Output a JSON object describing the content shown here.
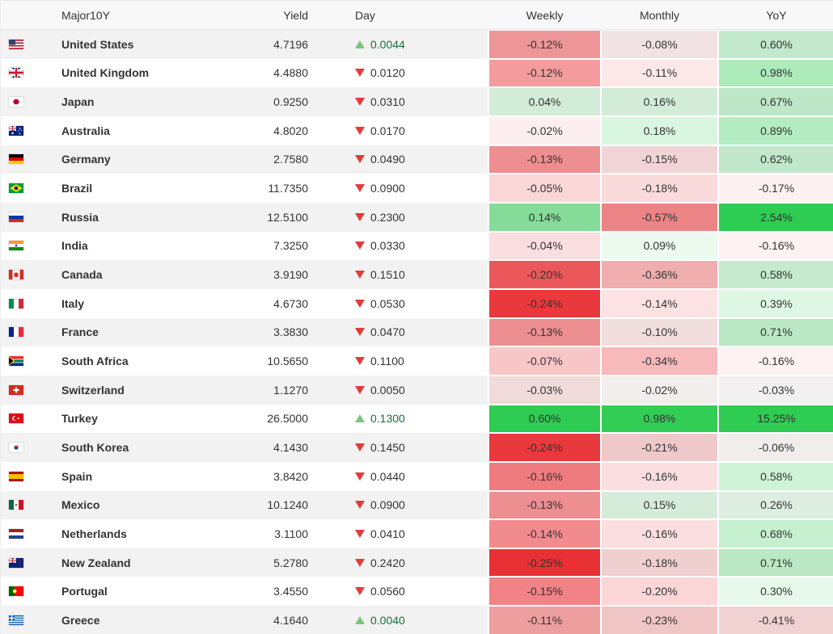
{
  "chart_data": {
    "type": "table",
    "title": "Major10Y",
    "columns": [
      "Major10Y",
      "Yield",
      "Day",
      "Weekly",
      "Monthly",
      "YoY"
    ],
    "heat_scales": {
      "weekly": 0.25,
      "monthly": 1.0,
      "yoy": 2.5
    },
    "rows": [
      {
        "country": "United States",
        "flag": "us",
        "yield": "4.7196",
        "day_change": "0.0044",
        "day_direction": "up",
        "weekly_pct": -0.12,
        "monthly_pct": -0.08,
        "yoy_pct": 0.6
      },
      {
        "country": "United Kingdom",
        "flag": "uk",
        "yield": "4.4880",
        "day_change": "0.0120",
        "day_direction": "down",
        "weekly_pct": -0.12,
        "monthly_pct": -0.11,
        "yoy_pct": 0.98
      },
      {
        "country": "Japan",
        "flag": "jp",
        "yield": "0.9250",
        "day_change": "0.0310",
        "day_direction": "down",
        "weekly_pct": 0.04,
        "monthly_pct": 0.16,
        "yoy_pct": 0.67
      },
      {
        "country": "Australia",
        "flag": "au",
        "yield": "4.8020",
        "day_change": "0.0170",
        "day_direction": "down",
        "weekly_pct": -0.02,
        "monthly_pct": 0.18,
        "yoy_pct": 0.89
      },
      {
        "country": "Germany",
        "flag": "de",
        "yield": "2.7580",
        "day_change": "0.0490",
        "day_direction": "down",
        "weekly_pct": -0.13,
        "monthly_pct": -0.15,
        "yoy_pct": 0.62
      },
      {
        "country": "Brazil",
        "flag": "br",
        "yield": "11.7350",
        "day_change": "0.0900",
        "day_direction": "down",
        "weekly_pct": -0.05,
        "monthly_pct": -0.18,
        "yoy_pct": -0.17
      },
      {
        "country": "Russia",
        "flag": "ru",
        "yield": "12.5100",
        "day_change": "0.2300",
        "day_direction": "down",
        "weekly_pct": 0.14,
        "monthly_pct": -0.57,
        "yoy_pct": 2.54
      },
      {
        "country": "India",
        "flag": "in",
        "yield": "7.3250",
        "day_change": "0.0330",
        "day_direction": "down",
        "weekly_pct": -0.04,
        "monthly_pct": 0.09,
        "yoy_pct": -0.16
      },
      {
        "country": "Canada",
        "flag": "ca",
        "yield": "3.9190",
        "day_change": "0.1510",
        "day_direction": "down",
        "weekly_pct": -0.2,
        "monthly_pct": -0.36,
        "yoy_pct": 0.58
      },
      {
        "country": "Italy",
        "flag": "it",
        "yield": "4.6730",
        "day_change": "0.0530",
        "day_direction": "down",
        "weekly_pct": -0.24,
        "monthly_pct": -0.14,
        "yoy_pct": 0.39
      },
      {
        "country": "France",
        "flag": "fr",
        "yield": "3.3830",
        "day_change": "0.0470",
        "day_direction": "down",
        "weekly_pct": -0.13,
        "monthly_pct": -0.1,
        "yoy_pct": 0.71
      },
      {
        "country": "South Africa",
        "flag": "za",
        "yield": "10.5650",
        "day_change": "0.1100",
        "day_direction": "down",
        "weekly_pct": -0.07,
        "monthly_pct": -0.34,
        "yoy_pct": -0.16
      },
      {
        "country": "Switzerland",
        "flag": "ch",
        "yield": "1.1270",
        "day_change": "0.0050",
        "day_direction": "down",
        "weekly_pct": -0.03,
        "monthly_pct": -0.02,
        "yoy_pct": -0.03
      },
      {
        "country": "Turkey",
        "flag": "tr",
        "yield": "26.5000",
        "day_change": "0.1300",
        "day_direction": "up",
        "weekly_pct": 0.6,
        "monthly_pct": 0.98,
        "yoy_pct": 15.25
      },
      {
        "country": "South Korea",
        "flag": "kr",
        "yield": "4.1430",
        "day_change": "0.1450",
        "day_direction": "down",
        "weekly_pct": -0.24,
        "monthly_pct": -0.21,
        "yoy_pct": -0.06
      },
      {
        "country": "Spain",
        "flag": "es",
        "yield": "3.8420",
        "day_change": "0.0440",
        "day_direction": "down",
        "weekly_pct": -0.16,
        "monthly_pct": -0.16,
        "yoy_pct": 0.58
      },
      {
        "country": "Mexico",
        "flag": "mx",
        "yield": "10.1240",
        "day_change": "0.0900",
        "day_direction": "down",
        "weekly_pct": -0.13,
        "monthly_pct": 0.15,
        "yoy_pct": 0.26
      },
      {
        "country": "Netherlands",
        "flag": "nl",
        "yield": "3.1100",
        "day_change": "0.0410",
        "day_direction": "down",
        "weekly_pct": -0.14,
        "monthly_pct": -0.16,
        "yoy_pct": 0.68
      },
      {
        "country": "New Zealand",
        "flag": "nz",
        "yield": "5.2780",
        "day_change": "0.2420",
        "day_direction": "down",
        "weekly_pct": -0.25,
        "monthly_pct": -0.18,
        "yoy_pct": 0.71
      },
      {
        "country": "Portugal",
        "flag": "pt",
        "yield": "3.4550",
        "day_change": "0.0560",
        "day_direction": "down",
        "weekly_pct": -0.15,
        "monthly_pct": -0.2,
        "yoy_pct": 0.3
      },
      {
        "country": "Greece",
        "flag": "gr",
        "yield": "4.1640",
        "day_change": "0.0040",
        "day_direction": "up",
        "weekly_pct": -0.11,
        "monthly_pct": -0.23,
        "yoy_pct": -0.41
      }
    ]
  },
  "colors": {
    "positive_heat": "#2ecc52",
    "negative_heat": "#e83135",
    "up_arrow": "#7cc57e",
    "down_arrow": "#e23b3c",
    "up_text": "#166f3d",
    "stripe": "#f2f2f2",
    "header_bg": "#f8f8f8",
    "text": "#333333"
  }
}
